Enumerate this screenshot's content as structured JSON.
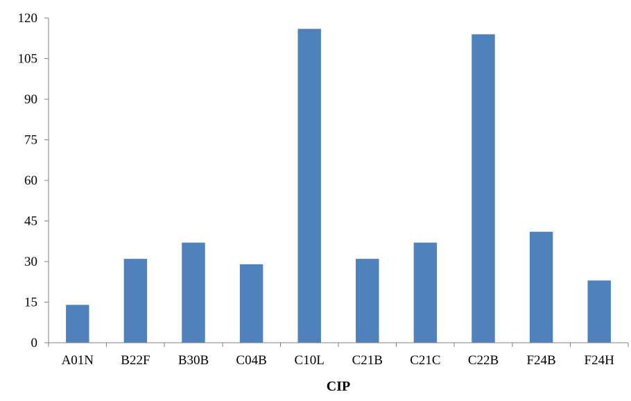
{
  "chart_data": {
    "type": "bar",
    "title": "",
    "xlabel": "CIP",
    "ylabel": "",
    "categories": [
      "A01N",
      "B22F",
      "B30B",
      "C04B",
      "C10L",
      "C21B",
      "C21C",
      "C22B",
      "F24B",
      "F24H"
    ],
    "values": [
      14,
      31,
      37,
      29,
      116,
      31,
      37,
      114,
      41,
      23
    ],
    "ylim": [
      0,
      120
    ],
    "yticks": [
      0,
      15,
      30,
      45,
      60,
      75,
      90,
      105,
      120
    ],
    "grid": false,
    "legend": "none",
    "bar_color": "#4F81BD"
  }
}
